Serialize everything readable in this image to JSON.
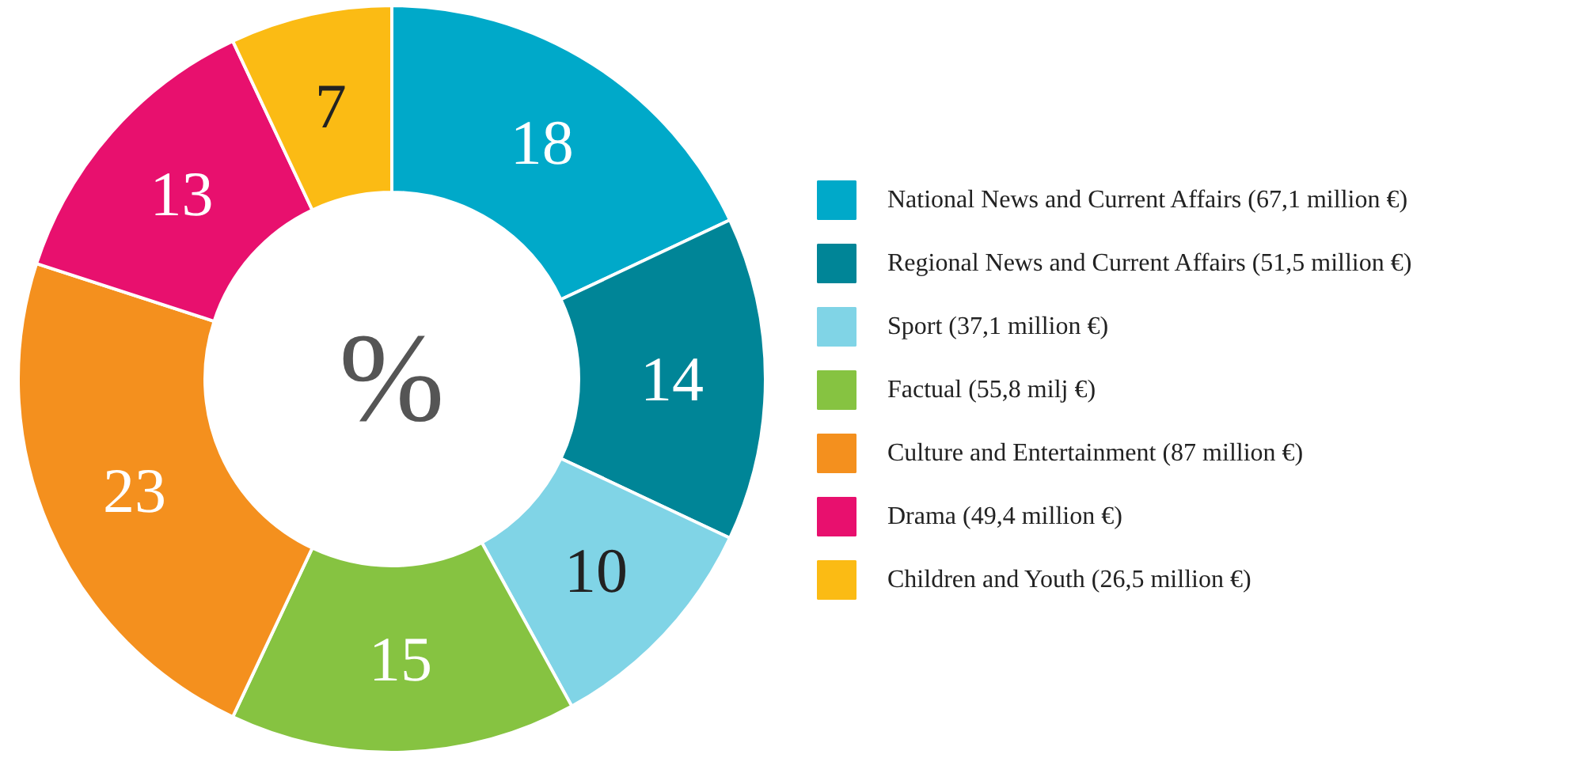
{
  "chart_data": {
    "type": "donut",
    "categories": [
      "National News and Current Affairs (67,1 million €)",
      "Regional News and Current Affairs (51,5 million €)",
      "Sport (37,1 million €)",
      "Factual (55,8 milj €)",
      "Culture and Entertainment (87 million €)",
      "Drama (49,4 million €)",
      "Children and Youth (26,5 million €)"
    ],
    "values": [
      18,
      14,
      10,
      15,
      23,
      13,
      7
    ],
    "colors": [
      "#00a9c9",
      "#008597",
      "#80d4e6",
      "#86c341",
      "#f4901e",
      "#e8106e",
      "#fbbb14"
    ],
    "data_labels": true,
    "legend": "right",
    "annotations": [
      "%"
    ]
  }
}
